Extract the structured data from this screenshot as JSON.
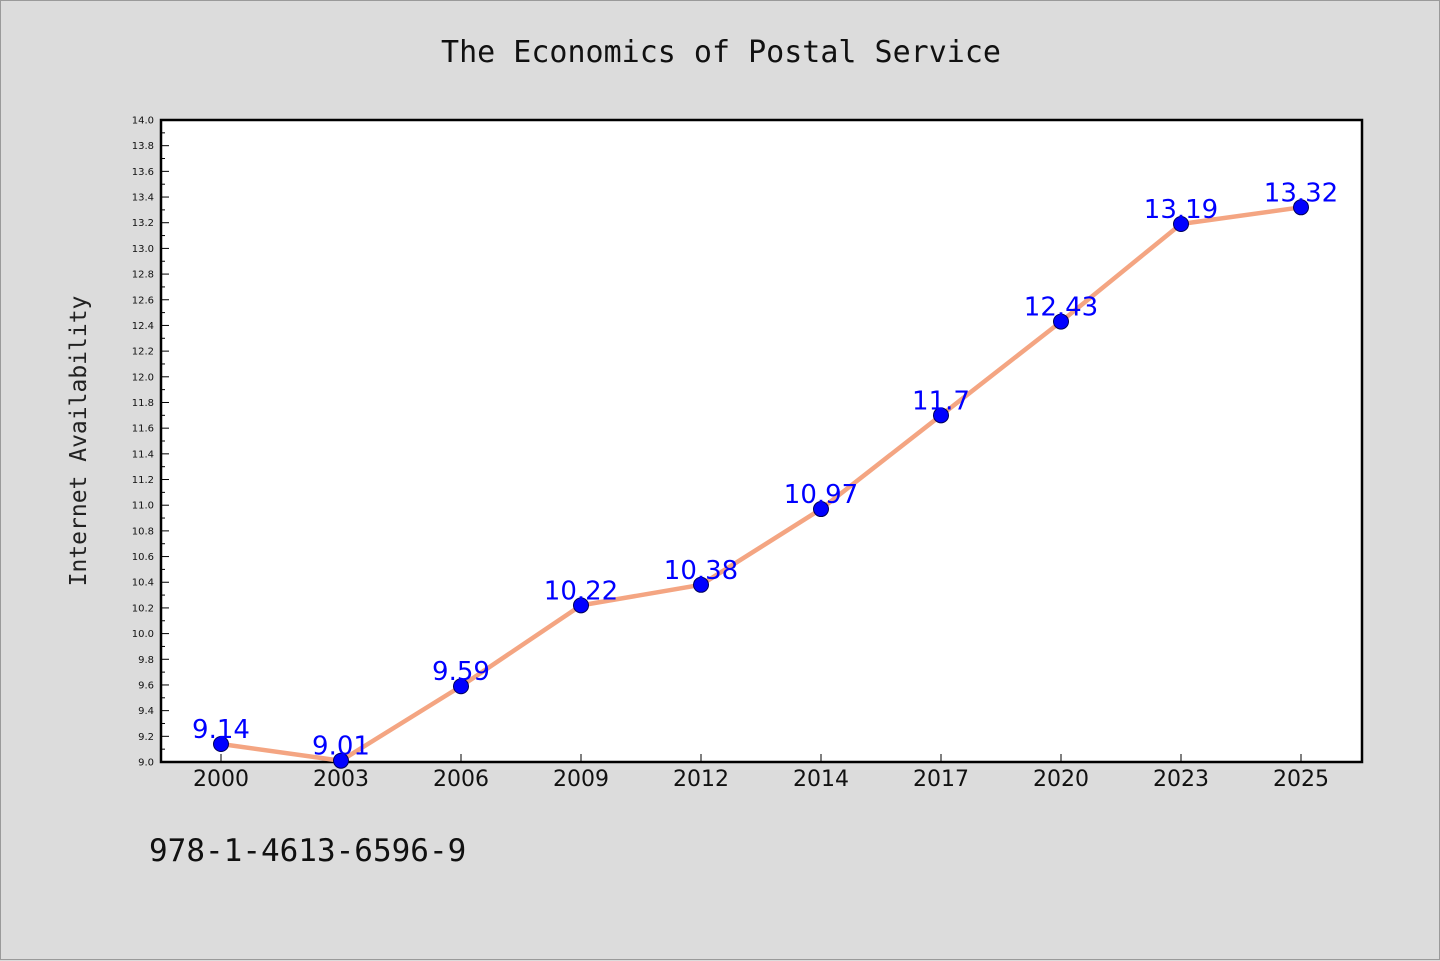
{
  "colors": {
    "background": "#dcdcdc",
    "plot_background": "#ffffff",
    "line": "#f4a582",
    "marker": "#0000ff",
    "data_label": "#0000ff"
  },
  "footer_code": "978-1-4613-6596-9",
  "chart_data": {
    "type": "line",
    "title": "The Economics of Postal Service",
    "xlabel": "",
    "ylabel": "Internet Availability",
    "categories": [
      "2000",
      "2003",
      "2006",
      "2009",
      "2012",
      "2014",
      "2017",
      "2020",
      "2023",
      "2025"
    ],
    "series": [
      {
        "values": [
          9.14,
          9.01,
          9.59,
          10.22,
          10.38,
          10.97,
          11.7,
          12.43,
          13.19,
          13.32
        ],
        "labels": [
          "9.14",
          "9.01",
          "9.59",
          "10.22",
          "10.38",
          "10.97",
          "11.7",
          "12.43",
          "13.19",
          "13.32"
        ]
      }
    ],
    "ylim": [
      9.0,
      14.0
    ],
    "yticks": [
      "9.0",
      "9.2",
      "9.4",
      "9.6",
      "9.8",
      "10.0",
      "10.2",
      "10.4",
      "10.6",
      "10.8",
      "11.0",
      "11.2",
      "11.4",
      "11.6",
      "11.8",
      "12.0",
      "12.2",
      "12.4",
      "12.6",
      "12.8",
      "13.0",
      "13.2",
      "13.4",
      "13.6",
      "13.8",
      "14.0"
    ],
    "grid": false,
    "legend": "none"
  }
}
